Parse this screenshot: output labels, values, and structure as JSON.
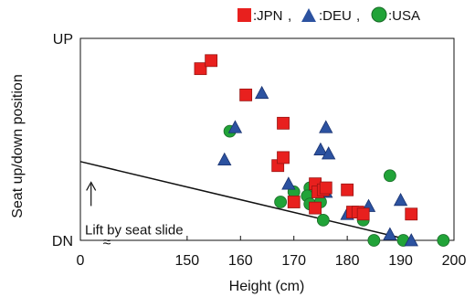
{
  "chart_data": {
    "type": "scatter",
    "xlabel": "Height (cm)",
    "ylabel": "Seat up/down position",
    "xlim": [
      130,
      200
    ],
    "ylim": [
      0,
      1
    ],
    "x_ticks": [
      {
        "value": 150,
        "label": "150"
      },
      {
        "value": 160,
        "label": "160"
      },
      {
        "value": 170,
        "label": "170"
      },
      {
        "value": 180,
        "label": "180"
      },
      {
        "value": 190,
        "label": "190"
      },
      {
        "value": 200,
        "label": "200"
      }
    ],
    "x_origin_label": "0",
    "axis_break": "≈",
    "y_tick_labels": [
      {
        "value": 1,
        "label": "UP"
      },
      {
        "value": 0,
        "label": "DN"
      }
    ],
    "grid": false,
    "legend_position": "top-right",
    "legend_separator": ",",
    "series": [
      {
        "name": ":JPN",
        "marker": "square",
        "color": "#e8201e",
        "points": [
          [
            152.5,
            0.85
          ],
          [
            154.5,
            0.89
          ],
          [
            161,
            0.72
          ],
          [
            168,
            0.58
          ],
          [
            167,
            0.37
          ],
          [
            168,
            0.41
          ],
          [
            170,
            0.19
          ],
          [
            174,
            0.28
          ],
          [
            174.5,
            0.24
          ],
          [
            175.5,
            0.25
          ],
          [
            174,
            0.16
          ],
          [
            176,
            0.26
          ],
          [
            180,
            0.25
          ],
          [
            181,
            0.14
          ],
          [
            182,
            0.14
          ],
          [
            183,
            0.13
          ],
          [
            192,
            0.13
          ]
        ]
      },
      {
        "name": ":DEU",
        "marker": "triangle",
        "color": "#2c52a0",
        "points": [
          [
            164,
            0.73
          ],
          [
            159,
            0.56
          ],
          [
            157,
            0.4
          ],
          [
            169,
            0.28
          ],
          [
            176,
            0.56
          ],
          [
            175,
            0.45
          ],
          [
            176.5,
            0.43
          ],
          [
            176,
            0.24
          ],
          [
            180,
            0.13
          ],
          [
            184,
            0.17
          ],
          [
            188,
            0.03
          ],
          [
            190,
            0.2
          ],
          [
            192,
            0.0
          ]
        ]
      },
      {
        "name": ":USA",
        "marker": "circle",
        "color": "#21a338",
        "points": [
          [
            158,
            0.54
          ],
          [
            167.5,
            0.19
          ],
          [
            170,
            0.24
          ],
          [
            173,
            0.26
          ],
          [
            172.5,
            0.22
          ],
          [
            173,
            0.18
          ],
          [
            175,
            0.19
          ],
          [
            175.5,
            0.1
          ],
          [
            183,
            0.1
          ],
          [
            185,
            0.0
          ],
          [
            188,
            0.32
          ],
          [
            190.5,
            0.0
          ],
          [
            198,
            0.0
          ]
        ]
      }
    ],
    "trend_line": {
      "from": [
        130,
        0.39
      ],
      "to": [
        192,
        0.0
      ]
    },
    "annotations": [
      {
        "text": "Lift by seat slide",
        "arrow": "up",
        "x": 132,
        "y": 0.17
      }
    ]
  }
}
